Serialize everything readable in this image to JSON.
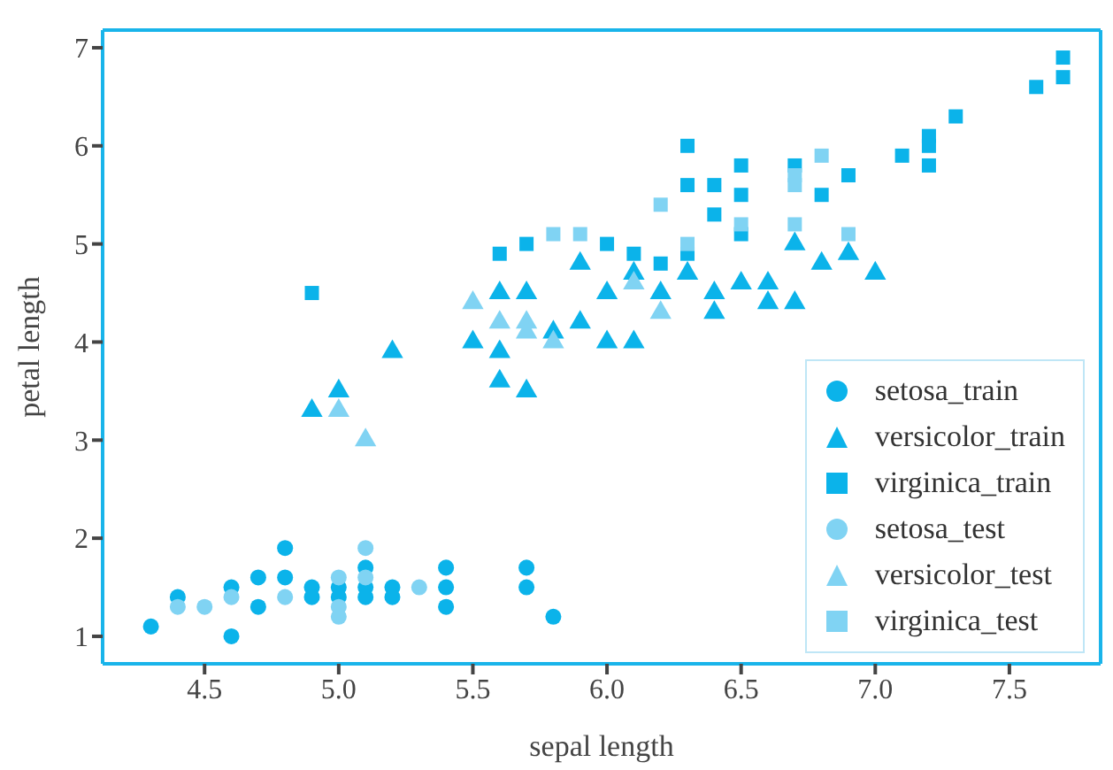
{
  "chart_data": {
    "type": "scatter",
    "xlabel": "sepal length",
    "ylabel": "petal length",
    "xlim": [
      4.12,
      7.84
    ],
    "ylim": [
      0.72,
      7.18
    ],
    "xticks": [
      {
        "value": 4.5,
        "label": "4.5"
      },
      {
        "value": 5,
        "label": "5.0"
      },
      {
        "value": 5.5,
        "label": "5.5"
      },
      {
        "value": 6,
        "label": "6.0"
      },
      {
        "value": 6.5,
        "label": "6.5"
      },
      {
        "value": 7,
        "label": "7.0"
      },
      {
        "value": 7.5,
        "label": "7.5"
      }
    ],
    "yticks": [
      1,
      2,
      3,
      4,
      5,
      6,
      7
    ],
    "grid": false,
    "legend": "bottom right",
    "series": [
      {
        "name": "setosa_train",
        "color": "#0bb3ea",
        "marker": "circle",
        "x": [
          4.3,
          4.4,
          4.6,
          4.6,
          4.7,
          4.7,
          4.8,
          4.8,
          4.9,
          4.9,
          5.0,
          5.0,
          5.1,
          5.1,
          5.1,
          5.2,
          5.2,
          5.4,
          5.4,
          5.4,
          5.7,
          5.7,
          5.8
        ],
        "values": [
          1.1,
          1.4,
          1.5,
          1.0,
          1.6,
          1.3,
          1.9,
          1.6,
          1.5,
          1.4,
          1.5,
          1.4,
          1.7,
          1.5,
          1.4,
          1.5,
          1.4,
          1.7,
          1.5,
          1.3,
          1.7,
          1.5,
          1.2
        ]
      },
      {
        "name": "versicolor_train",
        "color": "#0bb3ea",
        "marker": "triangle",
        "x": [
          4.9,
          5.0,
          5.2,
          5.5,
          5.6,
          5.6,
          5.6,
          5.7,
          5.7,
          5.8,
          5.9,
          5.9,
          6.0,
          6.0,
          6.1,
          6.1,
          6.2,
          6.3,
          6.4,
          6.4,
          6.5,
          6.6,
          6.6,
          6.7,
          6.7,
          6.8,
          6.9,
          7.0
        ],
        "values": [
          3.3,
          3.5,
          3.9,
          4.0,
          4.5,
          3.9,
          3.6,
          4.5,
          3.5,
          4.1,
          4.8,
          4.2,
          4.5,
          4.0,
          4.7,
          4.0,
          4.5,
          4.7,
          4.5,
          4.3,
          4.6,
          4.6,
          4.4,
          5.0,
          4.4,
          4.8,
          4.9,
          4.7
        ]
      },
      {
        "name": "virginica_train",
        "color": "#0bb3ea",
        "marker": "square",
        "x": [
          4.9,
          5.6,
          5.7,
          6.0,
          6.1,
          6.2,
          6.3,
          6.3,
          6.3,
          6.4,
          6.4,
          6.5,
          6.5,
          6.5,
          6.7,
          6.8,
          6.9,
          7.1,
          7.2,
          7.2,
          7.2,
          7.3,
          7.6,
          7.7,
          7.7
        ],
        "values": [
          4.5,
          4.9,
          5.0,
          5.0,
          4.9,
          4.8,
          6.0,
          5.6,
          4.9,
          5.6,
          5.3,
          5.8,
          5.5,
          5.1,
          5.8,
          5.5,
          5.7,
          5.9,
          6.1,
          6.0,
          5.8,
          6.3,
          6.6,
          6.9,
          6.7
        ]
      },
      {
        "name": "setosa_test",
        "color": "#80d3f3",
        "marker": "circle",
        "x": [
          4.4,
          4.5,
          4.6,
          4.8,
          5.0,
          5.0,
          5.0,
          5.1,
          5.1,
          5.3
        ],
        "values": [
          1.3,
          1.3,
          1.4,
          1.4,
          1.6,
          1.3,
          1.2,
          1.9,
          1.6,
          1.5
        ]
      },
      {
        "name": "versicolor_test",
        "color": "#80d3f3",
        "marker": "triangle",
        "x": [
          5.0,
          5.1,
          5.5,
          5.6,
          5.7,
          5.7,
          5.8,
          6.1,
          6.2
        ],
        "values": [
          3.3,
          3.0,
          4.4,
          4.2,
          4.2,
          4.1,
          4.0,
          4.6,
          4.3
        ]
      },
      {
        "name": "virginica_test",
        "color": "#80d3f3",
        "marker": "square",
        "x": [
          5.8,
          5.9,
          6.2,
          6.3,
          6.5,
          6.7,
          6.7,
          6.7,
          6.8,
          6.9
        ],
        "values": [
          5.1,
          5.1,
          5.4,
          5.0,
          5.2,
          5.7,
          5.6,
          5.2,
          5.9,
          5.1
        ]
      }
    ]
  }
}
